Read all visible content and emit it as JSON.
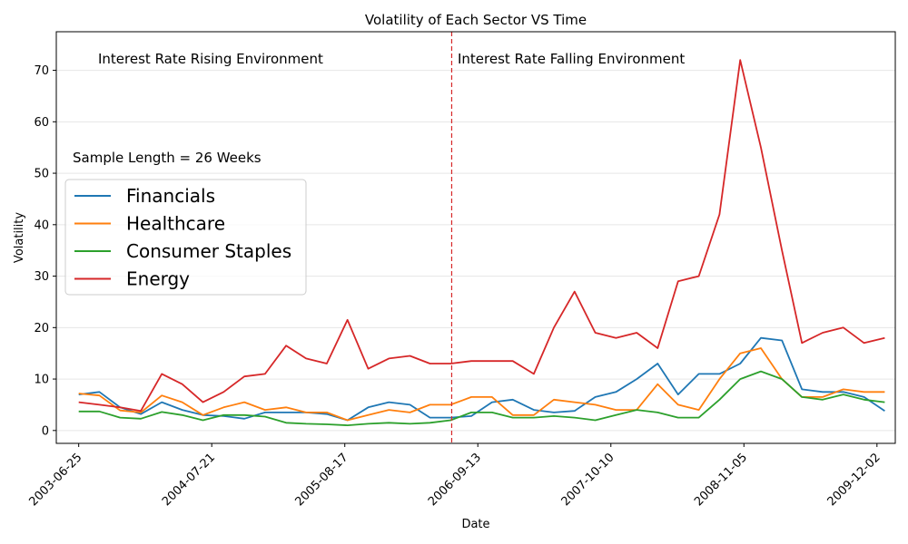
{
  "chart_data": {
    "type": "line",
    "title": "Volatility of Each Sector VS Time",
    "xlabel": "Date",
    "ylabel": "Volatility",
    "x_ticks": [
      "2003-06-25",
      "2004-07-21",
      "2005-08-17",
      "2006-09-13",
      "2007-10-10",
      "2008-11-05",
      "2009-12-02"
    ],
    "ylim": [
      -2.5,
      77.5
    ],
    "yticks": [
      0,
      10,
      20,
      30,
      40,
      50,
      60,
      70
    ],
    "grid": "horizontal",
    "legend_position": "left",
    "annotations": {
      "left": "Interest Rate Rising Environment",
      "right": "Interest Rate Falling Environment",
      "sample": "Sample Length = 26 Weeks"
    },
    "divider_date": "2006-06-28",
    "x": [
      "2003-06-25",
      "2003-08-25",
      "2003-10-25",
      "2003-12-25",
      "2004-02-25",
      "2004-04-25",
      "2004-06-25",
      "2004-08-25",
      "2004-10-25",
      "2004-12-25",
      "2005-02-25",
      "2005-04-25",
      "2005-06-25",
      "2005-08-25",
      "2005-10-25",
      "2005-12-25",
      "2006-02-25",
      "2006-04-25",
      "2006-06-25",
      "2006-08-25",
      "2006-10-25",
      "2006-12-25",
      "2007-02-25",
      "2007-04-25",
      "2007-06-25",
      "2007-08-25",
      "2007-10-25",
      "2007-12-25",
      "2008-02-25",
      "2008-04-25",
      "2008-06-25",
      "2008-08-25",
      "2008-10-25",
      "2008-12-25",
      "2009-02-25",
      "2009-04-25",
      "2009-06-25",
      "2009-08-25",
      "2009-10-25",
      "2009-12-25"
    ],
    "series": [
      {
        "name": "Financials",
        "color": "#1f77b4",
        "values": [
          7.0,
          7.5,
          4.5,
          3.2,
          5.5,
          4.0,
          3.0,
          2.8,
          2.3,
          3.5,
          3.5,
          3.5,
          3.2,
          2.0,
          4.5,
          5.5,
          5.0,
          2.5,
          2.5,
          2.8,
          5.5,
          6.0,
          4.0,
          3.5,
          3.8,
          6.5,
          7.5,
          10.0,
          13.0,
          7.0,
          11.0,
          11.0,
          13.0,
          18.0,
          17.5,
          8.0,
          7.5,
          7.5,
          6.5,
          3.8
        ]
      },
      {
        "name": "Healthcare",
        "color": "#ff7f0e",
        "values": [
          7.2,
          6.8,
          3.9,
          3.5,
          6.8,
          5.5,
          3.0,
          4.5,
          5.5,
          4.0,
          4.5,
          3.5,
          3.5,
          2.0,
          3.0,
          4.0,
          3.5,
          5.0,
          5.0,
          6.5,
          6.5,
          3.0,
          3.0,
          6.0,
          5.5,
          5.0,
          4.0,
          4.0,
          9.0,
          5.0,
          4.0,
          10.0,
          15.0,
          16.0,
          10.0,
          6.5,
          6.5,
          8.0,
          7.5,
          7.5
        ]
      },
      {
        "name": "Consumer Staples",
        "color": "#2ca02c",
        "values": [
          3.7,
          3.7,
          2.5,
          2.3,
          3.6,
          3.0,
          2.0,
          3.0,
          3.0,
          2.7,
          1.5,
          1.3,
          1.2,
          1.0,
          1.3,
          1.5,
          1.3,
          1.5,
          2.0,
          3.5,
          3.5,
          2.5,
          2.5,
          2.8,
          2.5,
          2.0,
          3.0,
          4.0,
          3.5,
          2.5,
          2.5,
          6.0,
          10.0,
          11.5,
          10.0,
          6.5,
          6.0,
          7.0,
          6.0,
          5.5
        ]
      },
      {
        "name": "Energy",
        "color": "#d62728",
        "values": [
          5.5,
          5.0,
          4.5,
          3.8,
          11.0,
          9.0,
          5.5,
          7.5,
          10.5,
          11.0,
          16.5,
          14.0,
          13.0,
          21.5,
          12.0,
          14.0,
          14.5,
          13.0,
          13.0,
          13.5,
          13.5,
          13.5,
          11.0,
          20.0,
          27.0,
          19.0,
          18.0,
          19.0,
          16.0,
          29.0,
          30.0,
          42.0,
          72.0,
          55.0,
          35.0,
          17.0,
          19.0,
          20.0,
          17.0,
          18.0
        ]
      }
    ]
  }
}
